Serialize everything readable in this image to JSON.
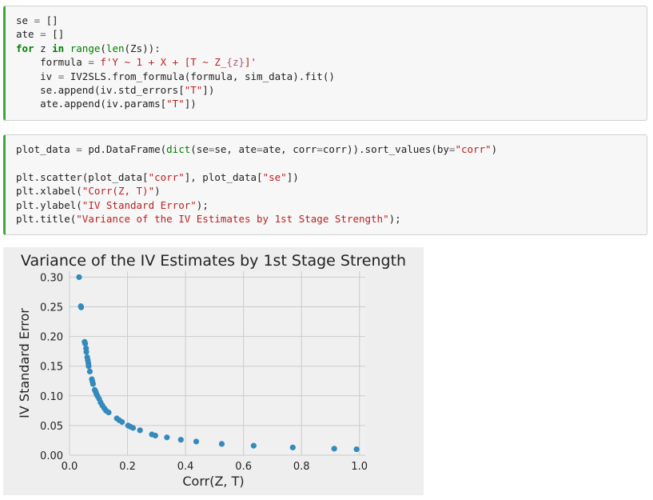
{
  "cells": [
    {
      "lines": [
        [
          {
            "t": "se "
          },
          {
            "t": "=",
            "c": "op"
          },
          {
            "t": " []"
          }
        ],
        [
          {
            "t": "ate "
          },
          {
            "t": "=",
            "c": "op"
          },
          {
            "t": " []"
          }
        ],
        [
          {
            "t": "for",
            "c": "kw"
          },
          {
            "t": " z "
          },
          {
            "t": "in",
            "c": "kw"
          },
          {
            "t": " "
          },
          {
            "t": "range",
            "c": "bi"
          },
          {
            "t": "("
          },
          {
            "t": "len",
            "c": "bi"
          },
          {
            "t": "(Zs)):"
          }
        ],
        [
          {
            "t": "    formula "
          },
          {
            "t": "=",
            "c": "op"
          },
          {
            "t": " "
          },
          {
            "t": "f'Y ~ 1 + X + [T ~ Z_",
            "c": "st"
          },
          {
            "t": "{z}",
            "c": "fs"
          },
          {
            "t": "]'",
            "c": "st"
          }
        ],
        [
          {
            "t": "    iv "
          },
          {
            "t": "=",
            "c": "op"
          },
          {
            "t": " IV2SLS.from_formula(formula, sim_data).fit()"
          }
        ],
        [
          {
            "t": "    se.append(iv.std_errors["
          },
          {
            "t": "\"T\"",
            "c": "st"
          },
          {
            "t": "])"
          }
        ],
        [
          {
            "t": "    ate.append(iv.params["
          },
          {
            "t": "\"T\"",
            "c": "st"
          },
          {
            "t": "])"
          }
        ]
      ]
    },
    {
      "lines": [
        [
          {
            "t": "plot_data "
          },
          {
            "t": "=",
            "c": "op"
          },
          {
            "t": " pd.DataFrame("
          },
          {
            "t": "dict",
            "c": "bi"
          },
          {
            "t": "(se"
          },
          {
            "t": "=",
            "c": "op"
          },
          {
            "t": "se, ate"
          },
          {
            "t": "=",
            "c": "op"
          },
          {
            "t": "ate, corr"
          },
          {
            "t": "=",
            "c": "op"
          },
          {
            "t": "corr)).sort_values(by"
          },
          {
            "t": "=",
            "c": "op"
          },
          {
            "t": "\"corr\"",
            "c": "st"
          },
          {
            "t": ")"
          }
        ],
        [],
        [
          {
            "t": "plt.scatter(plot_data["
          },
          {
            "t": "\"corr\"",
            "c": "st"
          },
          {
            "t": "], plot_data["
          },
          {
            "t": "\"se\"",
            "c": "st"
          },
          {
            "t": "])"
          }
        ],
        [
          {
            "t": "plt.xlabel("
          },
          {
            "t": "\"Corr(Z, T)\"",
            "c": "st"
          },
          {
            "t": ")"
          }
        ],
        [
          {
            "t": "plt.ylabel("
          },
          {
            "t": "\"IV Standard Error\"",
            "c": "st"
          },
          {
            "t": ");"
          }
        ],
        [
          {
            "t": "plt.title("
          },
          {
            "t": "\"Variance of the IV Estimates by 1st Stage Strength\"",
            "c": "st"
          },
          {
            "t": ");"
          }
        ]
      ]
    }
  ],
  "chart_data": {
    "type": "scatter",
    "title": "Variance of the IV Estimates by 1st Stage Strength",
    "xlabel": "Corr(Z, T)",
    "ylabel": "IV Standard Error",
    "xlim": [
      0.0,
      1.02
    ],
    "ylim": [
      0.0,
      0.31
    ],
    "xticks": [
      "0.0",
      "0.2",
      "0.4",
      "0.6",
      "0.8",
      "1.0"
    ],
    "yticks": [
      "0.00",
      "0.05",
      "0.10",
      "0.15",
      "0.20",
      "0.25",
      "0.30"
    ],
    "grid": true,
    "color": "#348abd",
    "background": "#f0f0f0",
    "points": [
      [
        0.033,
        0.3
      ],
      [
        0.039,
        0.251
      ],
      [
        0.04,
        0.249
      ],
      [
        0.052,
        0.191
      ],
      [
        0.054,
        0.188
      ],
      [
        0.057,
        0.18
      ],
      [
        0.058,
        0.174
      ],
      [
        0.061,
        0.165
      ],
      [
        0.063,
        0.16
      ],
      [
        0.065,
        0.155
      ],
      [
        0.066,
        0.15
      ],
      [
        0.07,
        0.141
      ],
      [
        0.077,
        0.128
      ],
      [
        0.079,
        0.124
      ],
      [
        0.081,
        0.12
      ],
      [
        0.087,
        0.11
      ],
      [
        0.09,
        0.107
      ],
      [
        0.093,
        0.103
      ],
      [
        0.096,
        0.1
      ],
      [
        0.102,
        0.095
      ],
      [
        0.107,
        0.089
      ],
      [
        0.113,
        0.084
      ],
      [
        0.12,
        0.079
      ],
      [
        0.126,
        0.075
      ],
      [
        0.135,
        0.072
      ],
      [
        0.163,
        0.062
      ],
      [
        0.171,
        0.059
      ],
      [
        0.181,
        0.056
      ],
      [
        0.202,
        0.05
      ],
      [
        0.21,
        0.048
      ],
      [
        0.219,
        0.046
      ],
      [
        0.243,
        0.042
      ],
      [
        0.284,
        0.035
      ],
      [
        0.296,
        0.033
      ],
      [
        0.336,
        0.03
      ],
      [
        0.384,
        0.026
      ],
      [
        0.437,
        0.023
      ],
      [
        0.525,
        0.019
      ],
      [
        0.635,
        0.016
      ],
      [
        0.77,
        0.013
      ],
      [
        0.913,
        0.011
      ],
      [
        0.99,
        0.01
      ]
    ]
  }
}
